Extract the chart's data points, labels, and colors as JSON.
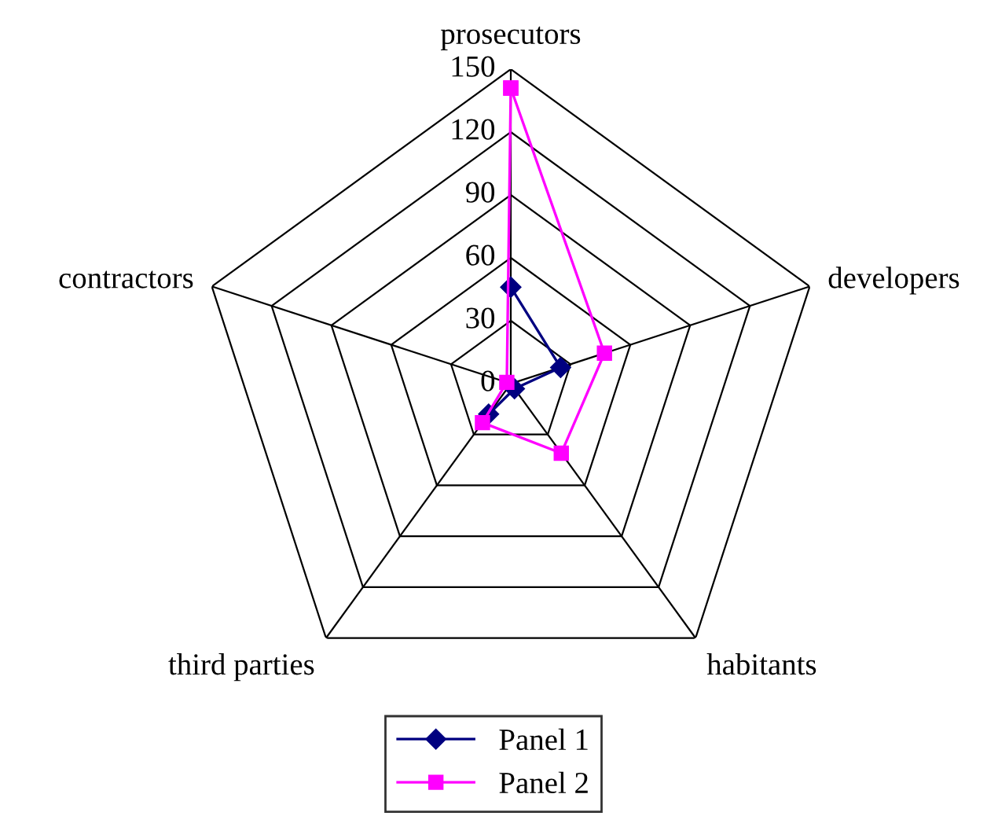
{
  "chart_data": {
    "type": "radar",
    "categories": [
      "prosecutors",
      "developers",
      "habitants",
      "third parties",
      "contractors"
    ],
    "series": [
      {
        "name": "Panel 1",
        "color": "#000080",
        "marker": "diamond",
        "values": [
          46,
          25,
          3,
          18,
          null
        ]
      },
      {
        "name": "Panel 2",
        "color": "#ff00ff",
        "marker": "square",
        "values": [
          141,
          47,
          41,
          23,
          2
        ]
      }
    ],
    "ylim": [
      0,
      150
    ],
    "yticks": [
      0,
      30,
      60,
      90,
      120,
      150
    ],
    "grid": true,
    "legend": "bottom"
  }
}
